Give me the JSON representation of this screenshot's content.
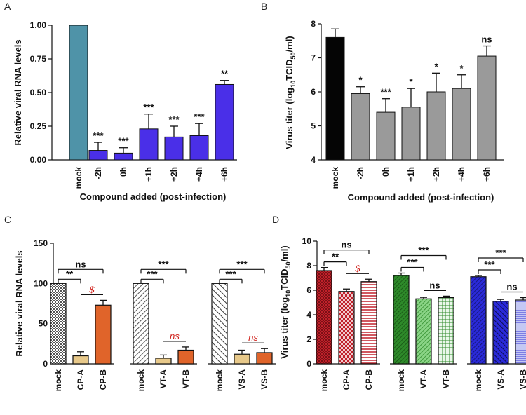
{
  "colors": {
    "mockA": "#4f93a8",
    "barsA": "#4a2fe8",
    "mockB": "#050505",
    "barsB": "#9a9a9a",
    "red": "#d0201a",
    "c_mock": "#c7c7c7",
    "c_a": "#e8c98a",
    "c_b": "#e0642a",
    "d_cp": "#c0212a",
    "d_cp_light": "#f0c8cc",
    "d_vt": "#2e8a2a",
    "d_vt_light": "#d6f0d6",
    "d_vs": "#2a2ad8",
    "d_vs_light": "#c4c8f4"
  },
  "chart_data": [
    {
      "panel": "A",
      "type": "bar",
      "categories": [
        "mock",
        "-2h",
        "0h",
        "+1h",
        "+2h",
        "+4h",
        "+6h"
      ],
      "values": [
        1.0,
        0.07,
        0.05,
        0.23,
        0.17,
        0.18,
        0.56
      ],
      "errors": [
        0,
        0.06,
        0.04,
        0.11,
        0.08,
        0.09,
        0.03
      ],
      "significance": [
        "",
        "***",
        "***",
        "***",
        "***",
        "***",
        "**"
      ],
      "ylabel": "Relative viral RNA levels",
      "xlabel": "Compound added (post-infection)",
      "ylim": [
        0,
        1.0
      ],
      "yticks": [
        "0.00",
        "0.25",
        "0.50",
        "0.75",
        "1.00"
      ]
    },
    {
      "panel": "B",
      "type": "bar",
      "categories": [
        "mock",
        "-2h",
        "0h",
        "+1h",
        "+2h",
        "+4h",
        "+6h"
      ],
      "values": [
        7.6,
        5.95,
        5.4,
        5.55,
        6.0,
        6.1,
        7.05
      ],
      "errors": [
        0.25,
        0.2,
        0.4,
        0.55,
        0.55,
        0.4,
        0.3
      ],
      "significance": [
        "",
        "*",
        "***",
        "*",
        "*",
        "*",
        "ns"
      ],
      "ylabel_pre": "Virus titer (log",
      "ylabel_sub": "10",
      "ylabel_mid": "TCID",
      "ylabel_sub2": "50",
      "ylabel_post": "/ml)",
      "xlabel": "Compound added (post-infection)",
      "ylim": [
        4,
        8
      ],
      "yticks": [
        "4",
        "5",
        "6",
        "7",
        "8"
      ]
    },
    {
      "panel": "C",
      "type": "bar",
      "groups": [
        {
          "categories": [
            "mock",
            "CP-A",
            "CP-B"
          ],
          "values": [
            100,
            10,
            73
          ],
          "errors": [
            0,
            5,
            6
          ]
        },
        {
          "categories": [
            "mock",
            "VT-A",
            "VT-B"
          ],
          "values": [
            100,
            7,
            17
          ],
          "errors": [
            0,
            4,
            4
          ]
        },
        {
          "categories": [
            "mock",
            "VS-A",
            "VS-B"
          ],
          "values": [
            100,
            12,
            14
          ],
          "errors": [
            0,
            5,
            5
          ]
        }
      ],
      "brackets": [
        {
          "group": 0,
          "from": 0,
          "to": 1,
          "label": "**"
        },
        {
          "group": 0,
          "from": 0,
          "to": 2,
          "label": "ns"
        },
        {
          "group": 0,
          "from": 1,
          "to": 2,
          "label": "$",
          "red": true
        },
        {
          "group": 1,
          "from": 0,
          "to": 1,
          "label": "***"
        },
        {
          "group": 1,
          "from": 0,
          "to": 2,
          "label": "***"
        },
        {
          "group": 1,
          "from": 1,
          "to": 2,
          "label": "ns",
          "red": true
        },
        {
          "group": 2,
          "from": 0,
          "to": 1,
          "label": "***"
        },
        {
          "group": 2,
          "from": 0,
          "to": 2,
          "label": "***"
        },
        {
          "group": 2,
          "from": 1,
          "to": 2,
          "label": "ns",
          "red": true
        }
      ],
      "ylabel": "Relative viral RNA levels",
      "ylim": [
        0,
        150
      ],
      "yticks": [
        "0",
        "50",
        "100",
        "150"
      ]
    },
    {
      "panel": "D",
      "type": "bar",
      "groups": [
        {
          "categories": [
            "mock",
            "CP-A",
            "CP-B"
          ],
          "values": [
            7.6,
            5.9,
            6.7
          ],
          "errors": [
            0.25,
            0.2,
            0.2
          ]
        },
        {
          "categories": [
            "mock",
            "VT-A",
            "VT-B"
          ],
          "values": [
            7.2,
            5.3,
            5.4
          ],
          "errors": [
            0.2,
            0.12,
            0.12
          ]
        },
        {
          "categories": [
            "mock",
            "VS-A",
            "VS-B"
          ],
          "values": [
            7.1,
            5.1,
            5.2
          ],
          "errors": [
            0.1,
            0.15,
            0.2
          ]
        }
      ],
      "brackets": [
        {
          "group": 0,
          "from": 0,
          "to": 1,
          "label": "**"
        },
        {
          "group": 0,
          "from": 0,
          "to": 2,
          "label": "ns"
        },
        {
          "group": 0,
          "from": 1,
          "to": 2,
          "label": "$",
          "red": true
        },
        {
          "group": 1,
          "from": 0,
          "to": 1,
          "label": "***"
        },
        {
          "group": 1,
          "from": 0,
          "to": 2,
          "label": "***"
        },
        {
          "group": 1,
          "from": 1,
          "to": 2,
          "label": "ns"
        },
        {
          "group": 2,
          "from": 0,
          "to": 1,
          "label": "***"
        },
        {
          "group": 2,
          "from": 0,
          "to": 2,
          "label": "***"
        },
        {
          "group": 2,
          "from": 1,
          "to": 2,
          "label": "ns"
        }
      ],
      "ylabel_pre": "Virus titer (log",
      "ylabel_sub": "10",
      "ylabel_mid": "TCID",
      "ylabel_sub2": "50",
      "ylabel_post": "/ml)",
      "ylim": [
        0,
        10
      ],
      "yticks": [
        "0",
        "2",
        "4",
        "6",
        "8",
        "10"
      ]
    }
  ]
}
